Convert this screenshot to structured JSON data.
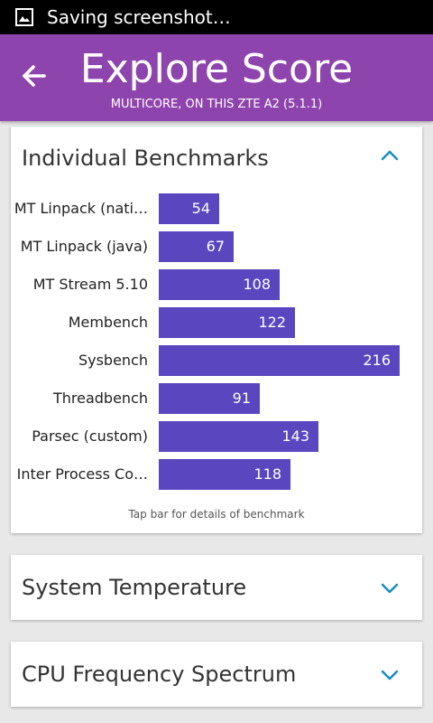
{
  "status_bar": {
    "text": "Saving screenshot…",
    "icon": "image-icon"
  },
  "app_bar": {
    "title": "Explore Score",
    "subtitle": "MULTICORE, ON THIS ZTE A2 (5.1.1)",
    "back_icon": "arrow-left-icon",
    "color": "#8e44ad"
  },
  "benchmarks_card": {
    "title": "Individual Benchmarks",
    "expanded": true,
    "hint": "Tap bar for details of benchmark",
    "bar_color": "#5a47c0",
    "chart_data": {
      "type": "bar",
      "orientation": "horizontal",
      "categories": [
        "MT Linpack (nati…",
        "MT Linpack (java)",
        "MT Stream 5.10",
        "Membench",
        "Sysbench",
        "Threadbench",
        "Parsec (custom)",
        "Inter Process Co…"
      ],
      "values": [
        54,
        67,
        108,
        122,
        216,
        91,
        143,
        118
      ]
    }
  },
  "cards": [
    {
      "title": "System Temperature",
      "expanded": false
    },
    {
      "title": "CPU Frequency Spectrum",
      "expanded": false
    }
  ],
  "accent_color": "#1a8fbf"
}
